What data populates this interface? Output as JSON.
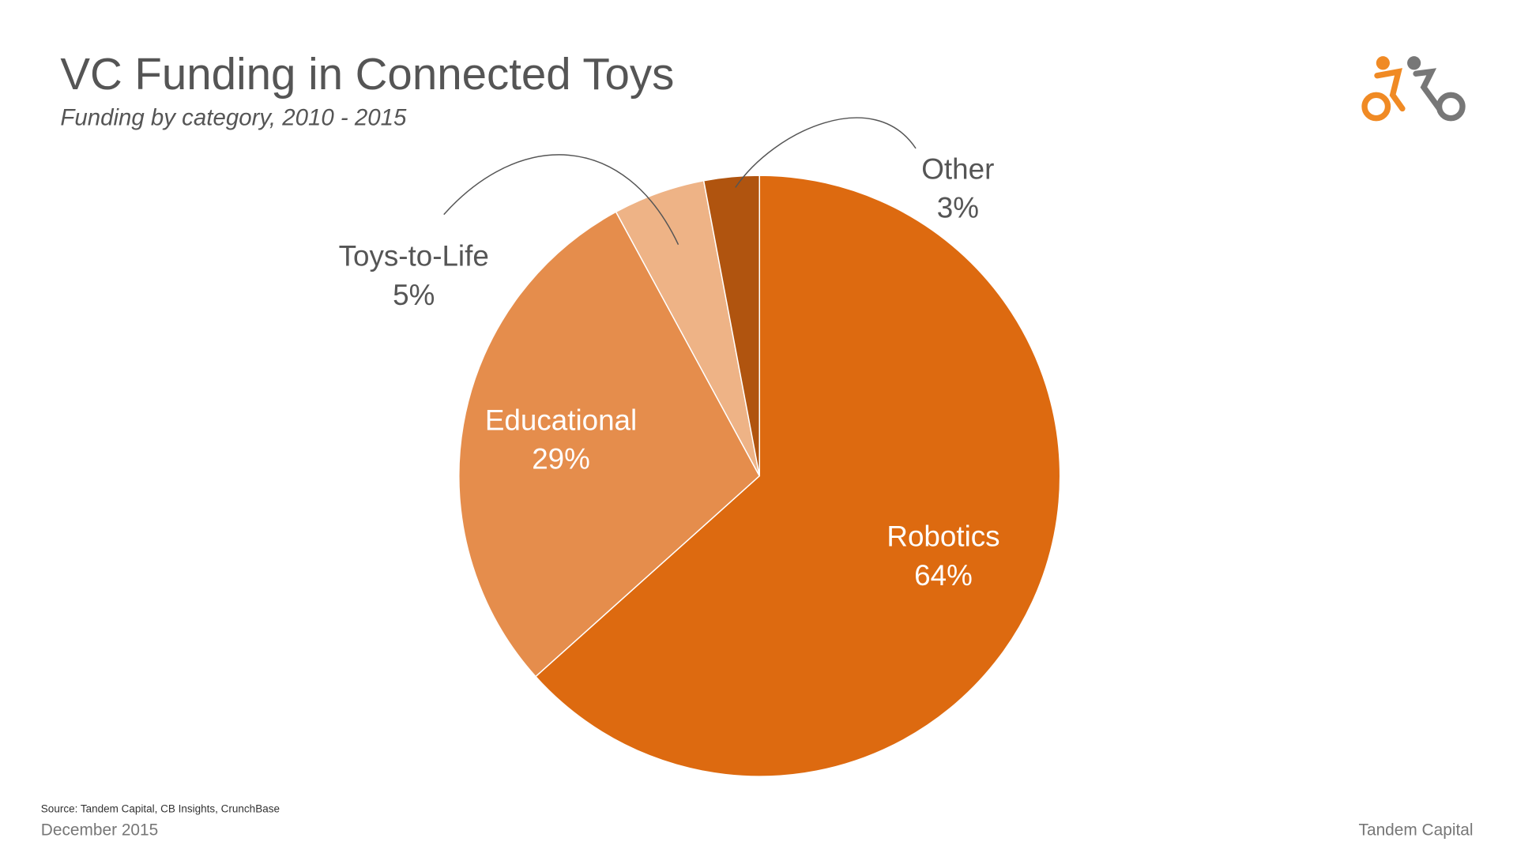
{
  "chart_data": {
    "type": "pie",
    "title": "VC Funding in Connected Toys",
    "subtitle": "Funding by category, 2010 - 2015",
    "categories": [
      "Robotics",
      "Educational",
      "Toys-to-Life",
      "Other"
    ],
    "values": [
      64,
      29,
      5,
      3
    ],
    "value_labels": [
      "64%",
      "29%",
      "5%",
      "3%"
    ],
    "colors": [
      "#dd6a10",
      "#e58d4c",
      "#eeb386",
      "#b0540f"
    ],
    "source": "Source: Tandem Capital, CB Insights, CrunchBase"
  },
  "footer": {
    "date": "December 2015",
    "company": "Tandem Capital"
  }
}
